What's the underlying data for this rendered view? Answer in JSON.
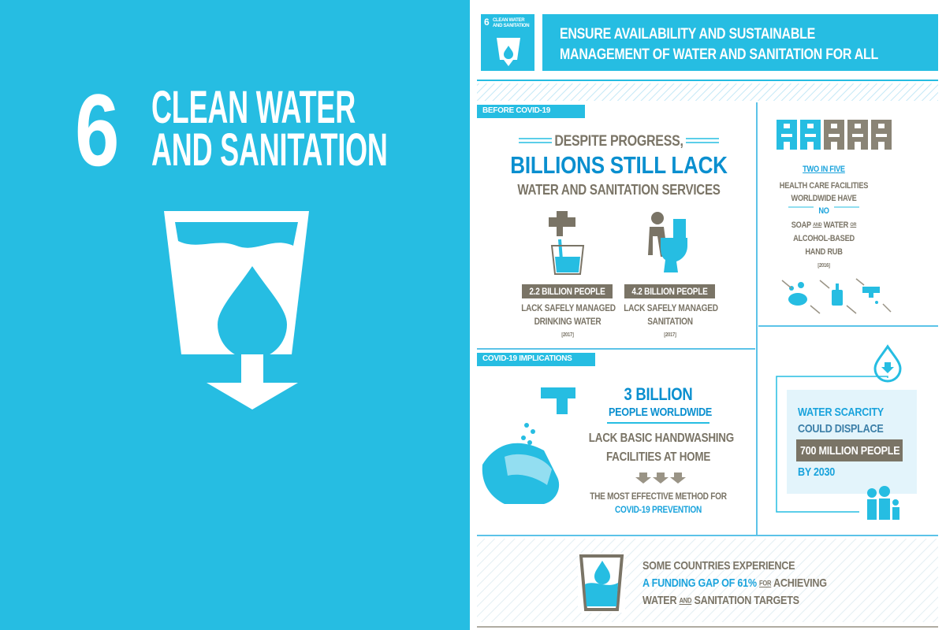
{
  "left_panel": {
    "number": "6",
    "title_lines": [
      "CLEAN WATER",
      "AND SANITATION"
    ]
  },
  "header": {
    "badge_number": "6",
    "badge_text_lines": [
      "CLEAN WATER",
      "AND SANITATION"
    ],
    "title_lines": [
      "ENSURE AVAILABILITY AND SUSTAINABLE",
      "MANAGEMENT OF WATER AND SANITATION FOR ALL"
    ]
  },
  "before_covid": {
    "label": "BEFORE COVID-19",
    "headline": {
      "lead": "DESPITE PROGRESS,",
      "main": "BILLIONS STILL LACK",
      "sub": "WATER AND SANITATION SERVICES"
    },
    "stats": [
      {
        "figure": "2.2 BILLION PEOPLE",
        "lines": [
          "LACK SAFELY MANAGED",
          "DRINKING WATER"
        ],
        "year": "[2017]"
      },
      {
        "figure": "4.2 BILLION PEOPLE",
        "lines": [
          "LACK SAFELY MANAGED",
          "SANITATION"
        ],
        "year": "[2017]"
      }
    ]
  },
  "health_facilities": {
    "lead": "TWO IN FIVE",
    "lines": [
      "HEALTH CARE FACILITIES",
      "WORLDWIDE HAVE"
    ],
    "emphasis": "NO",
    "soap_line": [
      "SOAP",
      "AND",
      "WATER",
      "OR"
    ],
    "more_lines": [
      "ALCOHOL-BASED",
      "HAND RUB"
    ],
    "year": "[2016]"
  },
  "covid_implications": {
    "label": "COVID-19 IMPLICATIONS",
    "figure": "3 BILLION",
    "figure_sub": "PEOPLE WORLDWIDE",
    "lines": [
      "LACK BASIC HANDWASHING",
      "FACILITIES AT HOME"
    ],
    "note": "THE MOST EFFECTIVE METHOD FOR",
    "note_emphasis": "COVID-19 PREVENTION"
  },
  "water_scarcity": {
    "lines": [
      "WATER SCARCITY",
      "COULD DISPLACE"
    ],
    "figure": "700 MILLION PEOPLE",
    "year_line": "BY 2030"
  },
  "funding_gap": {
    "line1": "SOME COUNTRIES EXPERIENCE",
    "line2": [
      "A FUNDING GAP OF 61%",
      "FOR",
      "ACHIEVING"
    ],
    "line3": [
      "WATER",
      "AND",
      "SANITATION TARGETS"
    ]
  }
}
